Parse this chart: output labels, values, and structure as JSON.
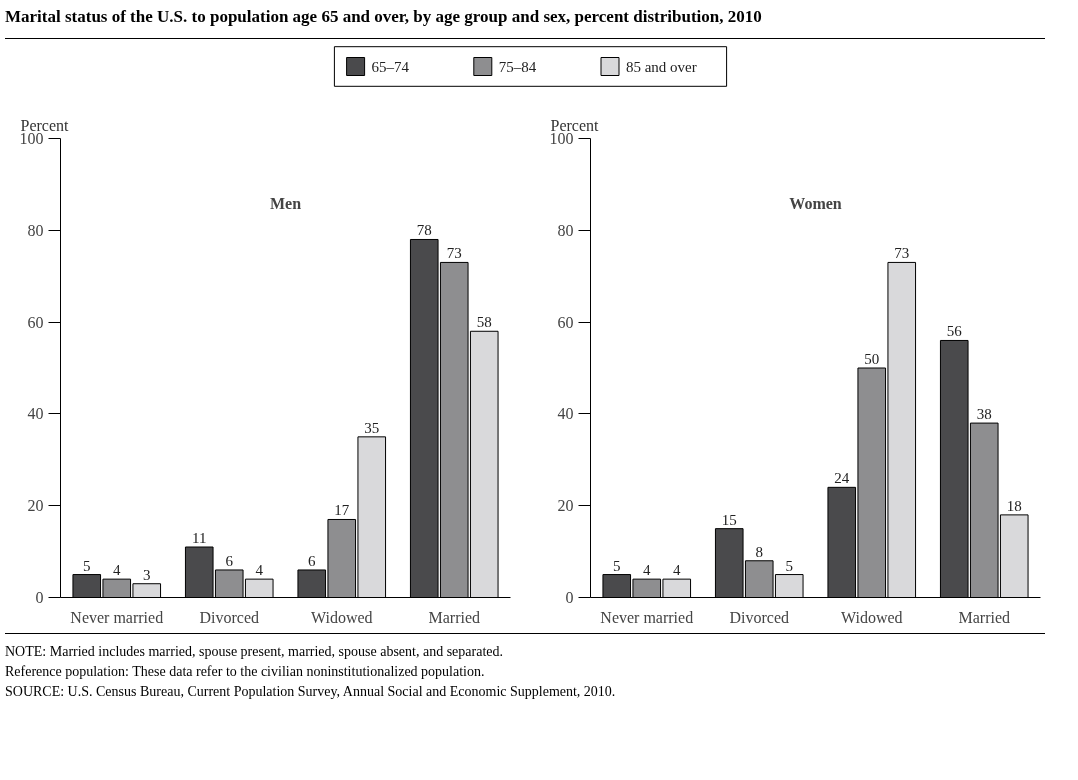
{
  "chart_data": [
    {
      "type": "bar",
      "title": "Marital status of the U.S. to population age 65 and over, by age group and sex, percent distribution, 2010",
      "subtitle": "Men",
      "ylabel": "Percent",
      "categories": [
        "Never married",
        "Divorced",
        "Widowed",
        "Married"
      ],
      "ylim": [
        0,
        100
      ],
      "yticks": [
        0,
        20,
        40,
        60,
        80,
        100
      ],
      "grid": false,
      "legend": "top",
      "data_labels": true,
      "series": [
        {
          "name": "65–74",
          "color": "#4a4a4c",
          "values": [
            5,
            11,
            6,
            78
          ]
        },
        {
          "name": "75–84",
          "color": "#8e8e90",
          "values": [
            4,
            6,
            17,
            73
          ]
        },
        {
          "name": "85 and over",
          "color": "#d9d9db",
          "values": [
            3,
            4,
            35,
            58
          ]
        }
      ]
    },
    {
      "type": "bar",
      "subtitle": "Women",
      "ylabel": "Percent",
      "categories": [
        "Never married",
        "Divorced",
        "Widowed",
        "Married"
      ],
      "ylim": [
        0,
        100
      ],
      "yticks": [
        0,
        20,
        40,
        60,
        80,
        100
      ],
      "grid": false,
      "data_labels": true,
      "annotations": [
        "NOTE: Married includes married, spouse present, married, spouse absent, and separated.",
        "Reference population: These data refer to the civilian noninstitutionalized population.",
        "SOURCE: U.S. Census Bureau, Current Population Survey, Annual Social and Economic Supplement, 2010."
      ],
      "series": [
        {
          "color": "#4a4a4c",
          "values": [
            5,
            15,
            24,
            56
          ]
        },
        {
          "color": "#8e8e90",
          "values": [
            4,
            8,
            50,
            38
          ]
        },
        {
          "color": "#d9d9db",
          "values": [
            4,
            5,
            73,
            18
          ]
        }
      ]
    }
  ]
}
